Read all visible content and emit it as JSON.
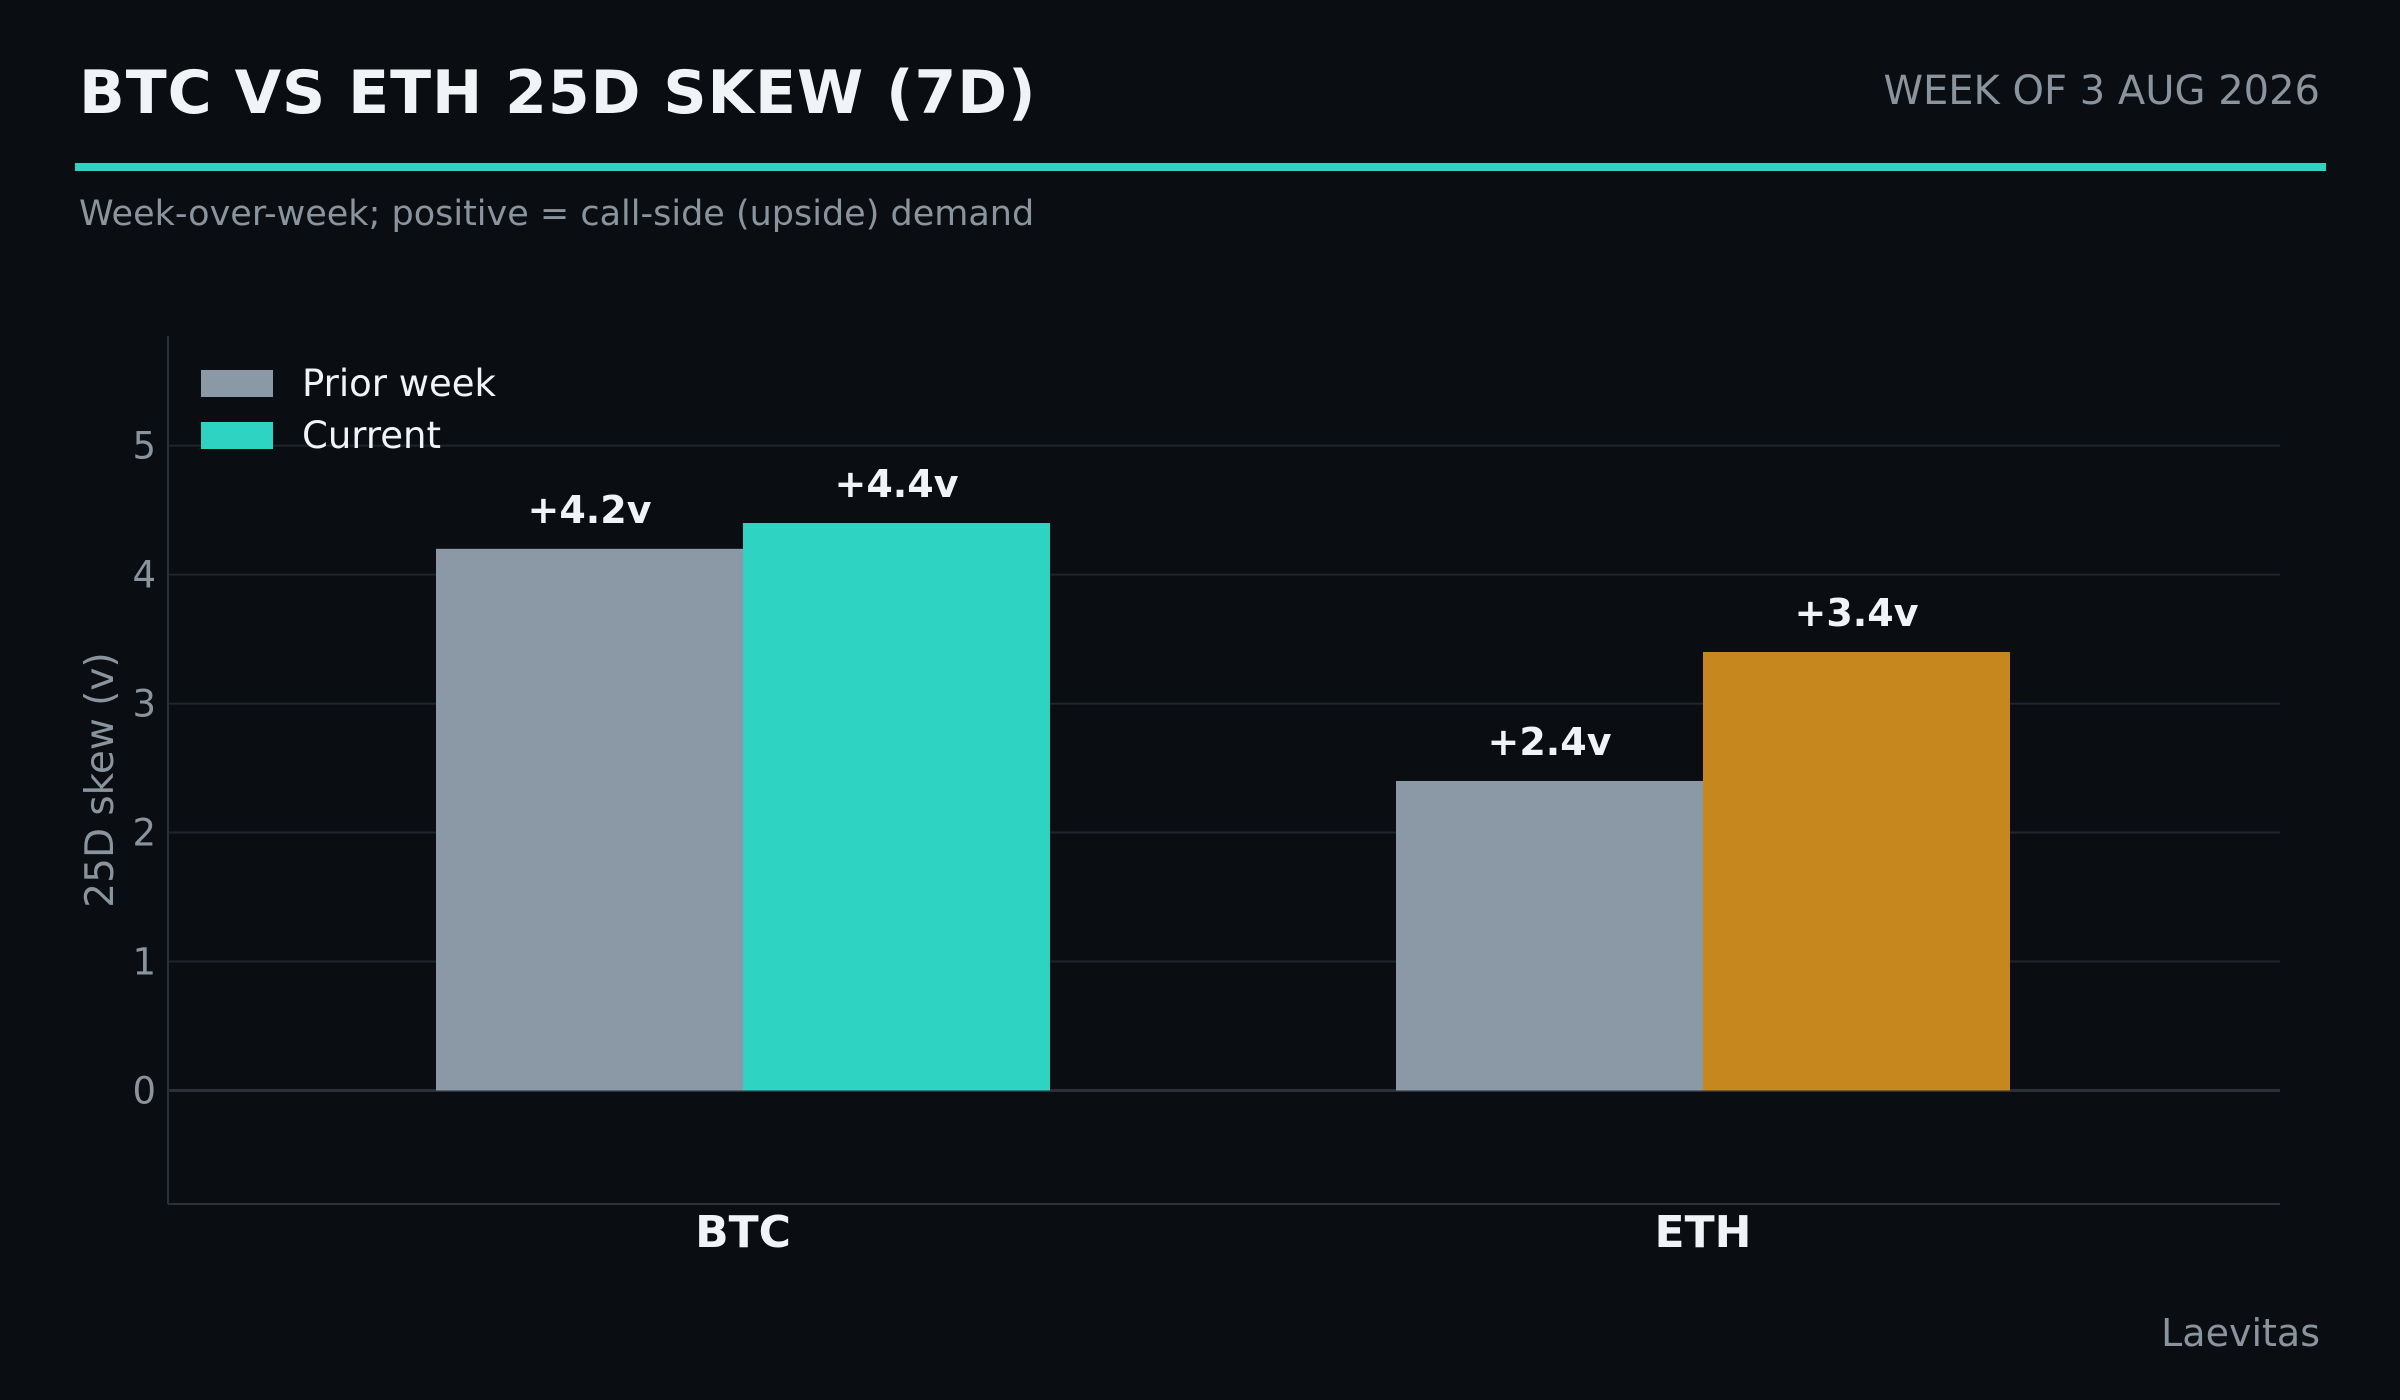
{
  "header": {
    "title": "BTC VS ETH 25D SKEW (7D)",
    "week": "WEEK OF 3 AUG 2026",
    "subtitle": "Week-over-week; positive = call-side (upside) demand",
    "accent_color": "#2ed3c1"
  },
  "footer": {
    "source": "Laevitas"
  },
  "colors": {
    "background": "#0a0e12",
    "grid": "#1f252c",
    "axis": "#2a3038",
    "tick_text": "#8a949e",
    "label_text": "#f1f4f7",
    "prior": "#8b99a6",
    "current_btc": "#2ed3c1",
    "current_eth": "#c6871f"
  },
  "chart_data": {
    "type": "bar",
    "categories": [
      "BTC",
      "ETH"
    ],
    "series": [
      {
        "name": "Prior week",
        "values": [
          4.2,
          2.4
        ],
        "labels": [
          "+4.2v",
          "+2.4v"
        ],
        "colors": [
          "#8b99a6",
          "#8b99a6"
        ]
      },
      {
        "name": "Current",
        "values": [
          4.4,
          3.4
        ],
        "labels": [
          "+4.4v",
          "+3.4v"
        ],
        "colors": [
          "#2ed3c1",
          "#c6871f"
        ]
      }
    ],
    "legend_swatch_colors": [
      "#8b99a6",
      "#2ed3c1"
    ],
    "ylabel": "25D skew (v)",
    "ylim": [
      -0.88,
      5.85
    ],
    "yticks": [
      0,
      1,
      2,
      3,
      4,
      5
    ],
    "grid": true,
    "legend_position": "top-left"
  }
}
